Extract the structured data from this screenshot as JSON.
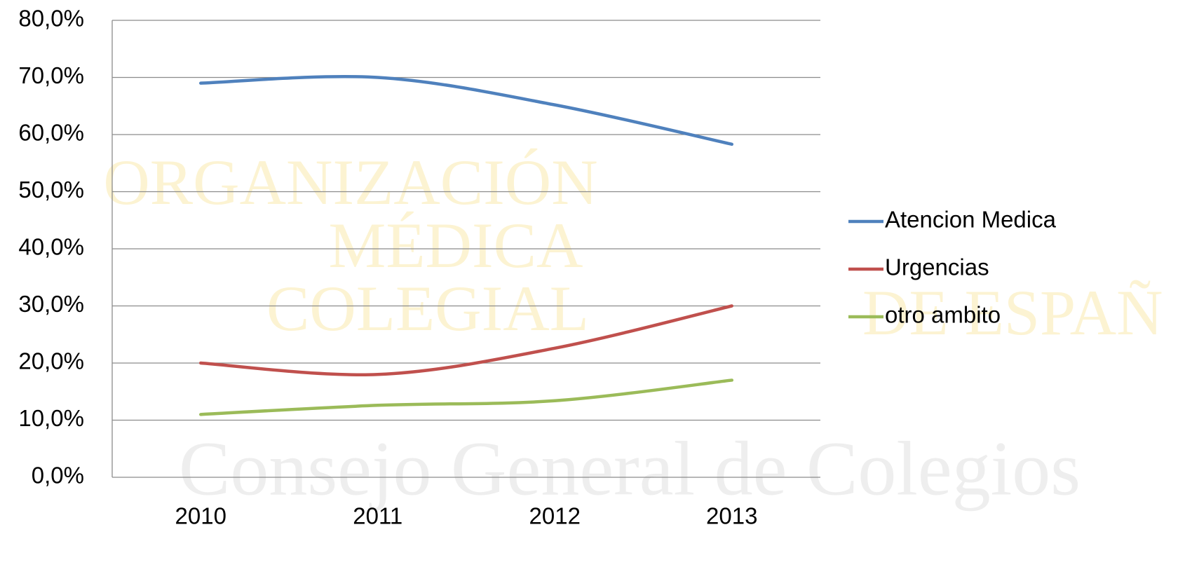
{
  "chart_data": {
    "type": "line",
    "watermark": [
      "ORGANIZACIÓN",
      "MÉDICA",
      "COLEGIAL",
      "Consejo General de Colegios",
      "DE ESPAÑ"
    ],
    "categories": [
      "2010",
      "2011",
      "2012",
      "2013"
    ],
    "series": [
      {
        "name": "Atencion Medica",
        "color": "#4f81bd",
        "values": [
          69.0,
          70.0,
          65.2,
          58.3
        ]
      },
      {
        "name": "Urgencias",
        "color": "#c0504d",
        "values": [
          20.0,
          18.0,
          22.6,
          30.0
        ]
      },
      {
        "name": "otro ambito",
        "color": "#9bbb59",
        "values": [
          11.0,
          12.6,
          13.4,
          17.0
        ]
      }
    ],
    "ylim": [
      0,
      80
    ],
    "yticks": [
      {
        "value": 0,
        "label": "0,0%"
      },
      {
        "value": 10,
        "label": "10,0%"
      },
      {
        "value": 20,
        "label": "20,0%"
      },
      {
        "value": 30,
        "label": "30,0%"
      },
      {
        "value": 40,
        "label": "40,0%"
      },
      {
        "value": 50,
        "label": "50,0%"
      },
      {
        "value": 60,
        "label": "60,0%"
      },
      {
        "value": 70,
        "label": "70,0%"
      },
      {
        "value": 80,
        "label": "80,0%"
      }
    ],
    "grid": true,
    "smooth": true,
    "legend": "right"
  }
}
